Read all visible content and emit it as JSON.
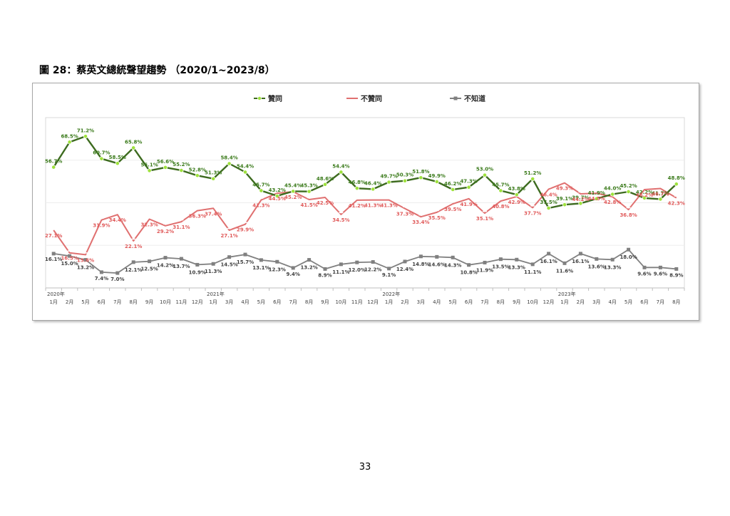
{
  "figure_title": "圖 28：蔡英文總統聲望趨勢 （2020/1~2023/8）",
  "page_number": "33",
  "colors": {
    "approve": "#3d6b1f",
    "approve_marker": "#9ee23c",
    "disapprove": "#e07070",
    "unknown": "#808080"
  },
  "chart_data": {
    "type": "line",
    "title": "",
    "xlabel": "",
    "ylabel": "",
    "ylim": [
      0,
      80
    ],
    "grid": true,
    "legend_position": "top",
    "years": [
      {
        "label": "2020年",
        "index": 0
      },
      {
        "label": "2021年",
        "index": 10
      },
      {
        "label": "2022年",
        "index": 21
      },
      {
        "label": "2023年",
        "index": 32
      }
    ],
    "categories": [
      "1月",
      "2月",
      "5月",
      "6月",
      "7月",
      "8月",
      "9月",
      "10月",
      "11月",
      "12月",
      "1月",
      "3月",
      "4月",
      "5月",
      "6月",
      "7月",
      "8月",
      "9月",
      "10月",
      "11月",
      "12月",
      "1月",
      "2月",
      "3月",
      "4月",
      "5月",
      "6月",
      "7月",
      "8月",
      "9月",
      "10月",
      "12月",
      "1月",
      "2月",
      "3月",
      "4月",
      "5月",
      "6月",
      "7月",
      "8月"
    ],
    "series": [
      {
        "name": "贊同",
        "key": "approve",
        "values": [
          56.7,
          68.5,
          71.2,
          60.7,
          58.5,
          65.8,
          55.1,
          56.6,
          55.2,
          52.8,
          51.3,
          58.4,
          54.4,
          45.7,
          43.2,
          45.4,
          45.3,
          48.6,
          54.4,
          46.8,
          46.4,
          49.7,
          50.3,
          51.8,
          49.9,
          46.2,
          47.3,
          53.0,
          45.7,
          43.8,
          51.2,
          37.5,
          39.1,
          39.7,
          41.9,
          44.0,
          45.2,
          42.2,
          41.7,
          48.8
        ]
      },
      {
        "name": "不贊同",
        "key": "disapprove",
        "values": [
          27.1,
          16.5,
          15.6,
          31.9,
          34.4,
          22.1,
          32.3,
          29.2,
          31.1,
          36.3,
          37.4,
          27.1,
          29.9,
          41.3,
          44.5,
          45.2,
          41.5,
          42.5,
          34.5,
          41.2,
          41.3,
          41.3,
          37.3,
          33.4,
          35.5,
          39.5,
          41.9,
          35.1,
          40.8,
          42.9,
          37.7,
          46.4,
          49.3,
          44.2,
          44.5,
          42.8,
          36.8,
          46.2,
          46.7,
          42.3
        ]
      },
      {
        "name": "不知道",
        "key": "unknown",
        "values": [
          16.1,
          15.0,
          13.2,
          7.4,
          7.0,
          12.1,
          12.5,
          14.2,
          13.7,
          10.9,
          11.3,
          14.5,
          15.7,
          13.1,
          12.3,
          9.4,
          13.2,
          8.9,
          11.1,
          12.0,
          12.2,
          9.1,
          12.4,
          14.8,
          14.6,
          14.3,
          10.8,
          11.9,
          13.5,
          13.3,
          11.1,
          16.1,
          11.6,
          16.1,
          13.6,
          13.3,
          18.0,
          9.6,
          9.6,
          8.9
        ]
      }
    ],
    "value_labels": {
      "approve": [
        "56.7%",
        "68.5%",
        "71.2%",
        "60.7%",
        "58.5%",
        "65.8%",
        "55.1%",
        "56.6%",
        "55.2%",
        "52.8%",
        "51.3%",
        "58.4%",
        "54.4%",
        "45.7%",
        "43.2%",
        "45.4%",
        "45.3%",
        "48.6%",
        "54.4%",
        "46.8%",
        "46.4%",
        "49.7%",
        "50.3%",
        "51.8%",
        "49.9%",
        "46.2%",
        "47.3%",
        "53.0%",
        "45.7%",
        "43.8%",
        "51.2%",
        "37.5%",
        "39.1%",
        "39.7%",
        "41.9%",
        "44.0%",
        "45.2%",
        "42.2%",
        "41.7%",
        "48.8%"
      ],
      "disapprove": [
        "27.1%",
        "16.5%",
        "15.6%",
        "31.9%",
        "34.4%",
        "22.1%",
        "32.3%",
        "29.2%",
        "31.1%",
        "36.3%",
        "37.4%",
        "27.1%",
        "29.9%",
        "41.3%",
        "44.5%",
        "45.2%",
        "41.5%",
        "42.5%",
        "34.5%",
        "41.2%",
        "41.3%",
        "41.3%",
        "37.3%",
        "33.4%",
        "35.5%",
        "39.5%",
        "41.9%",
        "35.1%",
        "40.8%",
        "42.9%",
        "37.7%",
        "46.4%",
        "49.3%",
        "44.2%",
        "44.5%",
        "42.8%",
        "36.8%",
        "46.2%",
        "46.7%",
        "42.3%"
      ],
      "unknown": [
        "16.1%",
        "15.0%",
        "13.2%",
        "7.4%",
        "7.0%",
        "12.1%",
        "12.5%",
        "14.2%",
        "13.7%",
        "10.9%",
        "11.3%",
        "14.5%",
        "15.7%",
        "13.1%",
        "12.3%",
        "9.4%",
        "13.2%",
        "8.9%",
        "11.1%",
        "12.0%",
        "12.2%",
        "9.1%",
        "12.4%",
        "14.8%",
        "14.6%",
        "14.3%",
        "10.8%",
        "11.9%",
        "13.5%",
        "13.3%",
        "11.1%",
        "16.1%",
        "11.6%",
        "16.1%",
        "13.6%",
        "13.3%",
        "18.0%",
        "9.6%",
        "9.6%",
        "8.9%"
      ]
    }
  }
}
